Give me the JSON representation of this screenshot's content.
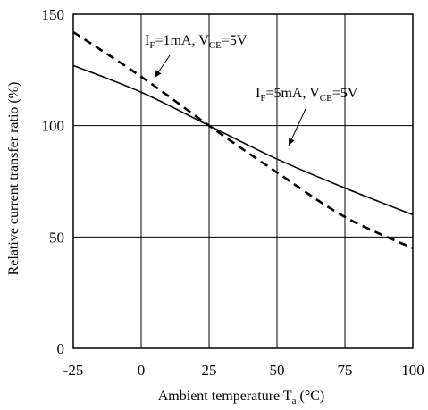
{
  "chart_data": {
    "type": "line",
    "xlabel": "Ambient temperature T",
    "xlabel_sub": "a",
    "xlabel_unit": " (°C)",
    "ylabel": "Relative current transfer ratio (%)",
    "xlim": [
      -25,
      100
    ],
    "ylim": [
      0,
      150
    ],
    "xticks": [
      -25,
      0,
      25,
      50,
      75,
      100
    ],
    "yticks": [
      0,
      50,
      100,
      150
    ],
    "grid": true,
    "series": [
      {
        "name": "IF=1mA, VCE=5V",
        "style": "dashed",
        "x": [
          -25,
          0,
          25,
          50,
          75,
          100
        ],
        "y": [
          142,
          122,
          100,
          79,
          59,
          45
        ]
      },
      {
        "name": "IF=5mA, VCE=5V",
        "style": "solid",
        "x": [
          -25,
          0,
          25,
          50,
          75,
          100
        ],
        "y": [
          127,
          115,
          100,
          85,
          72,
          60
        ]
      }
    ],
    "annotations": [
      {
        "main": "I",
        "sub1": "F",
        "mid": "=1mA, V",
        "sub2": "CE",
        "end": "=5V",
        "series": 0
      },
      {
        "main": "I",
        "sub1": "F",
        "mid": "=5mA, V",
        "sub2": "CE",
        "end": "=5V",
        "series": 1
      }
    ]
  }
}
